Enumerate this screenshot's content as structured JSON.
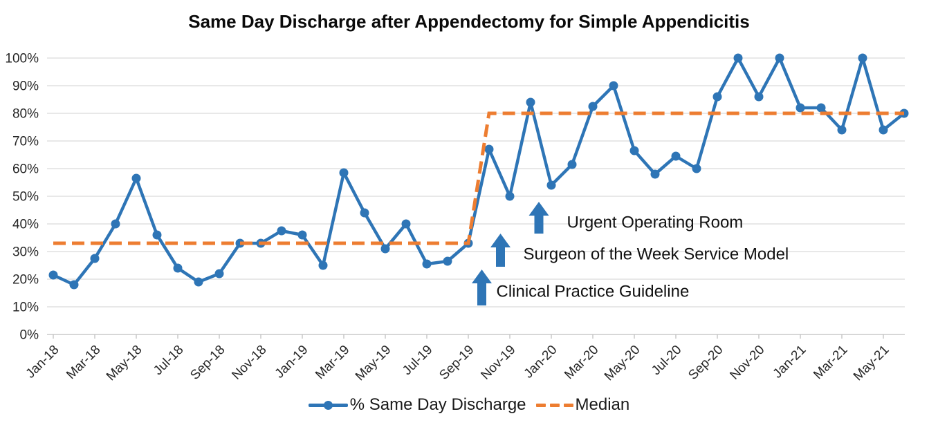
{
  "title": "Same Day Discharge after Appendectomy for Simple Appendicitis",
  "legend": {
    "series_label": "% Same Day Discharge",
    "median_label": "Median"
  },
  "colors": {
    "series": "#2E75B6",
    "median": "#ED7D31",
    "gridline": "#D9D9D9",
    "axis": "#BFBFBF",
    "tick_text": "#262626",
    "annotation_text": "#111111"
  },
  "y_axis": {
    "min": 0,
    "max": 100,
    "step": 10,
    "tick_labels": [
      "0%",
      "10%",
      "20%",
      "30%",
      "40%",
      "50%",
      "60%",
      "70%",
      "80%",
      "90%",
      "100%"
    ]
  },
  "x_axis": {
    "tick_labels": [
      "Jan-18",
      "Mar-18",
      "May-18",
      "Jul-18",
      "Sep-18",
      "Nov-18",
      "Jan-19",
      "Mar-19",
      "May-19",
      "Jul-19",
      "Sep-19",
      "Nov-19",
      "Jan-20",
      "Mar-20",
      "May-20",
      "Jul-20",
      "Sep-20",
      "Nov-20",
      "Jan-21",
      "Mar-21",
      "May-21"
    ]
  },
  "annotations": [
    {
      "label": "Clinical Practice Guideline",
      "arrow_month": 20.65,
      "arrow_top_pct": 23.5,
      "arrow_bottom_pct": 10.5,
      "label_month": 21.35,
      "label_pct": 15.5
    },
    {
      "label": "Surgeon of the Week Service Model",
      "arrow_month": 21.55,
      "arrow_top_pct": 36.5,
      "arrow_bottom_pct": 24.5,
      "label_month": 22.65,
      "label_pct": 29.0
    },
    {
      "label": "Urgent Operating Room",
      "arrow_month": 23.4,
      "arrow_top_pct": 48.0,
      "arrow_bottom_pct": 36.5,
      "label_month": 24.75,
      "label_pct": 40.5
    }
  ],
  "chart_data": {
    "type": "line",
    "title": "Same Day Discharge after Appendectomy for Simple Appendicitis",
    "xlabel": "",
    "ylabel": "",
    "ylim": [
      0,
      100
    ],
    "grid": true,
    "legend_position": "bottom",
    "x": [
      "Jan-18",
      "Feb-18",
      "Mar-18",
      "Apr-18",
      "May-18",
      "Jun-18",
      "Jul-18",
      "Aug-18",
      "Sep-18",
      "Oct-18",
      "Nov-18",
      "Dec-18",
      "Jan-19",
      "Feb-19",
      "Mar-19",
      "Apr-19",
      "May-19",
      "Jun-19",
      "Jul-19",
      "Aug-19",
      "Sep-19",
      "Oct-19",
      "Nov-19",
      "Dec-19",
      "Jan-20",
      "Feb-20",
      "Mar-20",
      "Apr-20",
      "May-20",
      "Jun-20",
      "Jul-20",
      "Aug-20",
      "Sep-20",
      "Oct-20",
      "Nov-20",
      "Dec-20",
      "Jan-21",
      "Feb-21",
      "Mar-21",
      "Apr-21",
      "May-21",
      "Jun-21"
    ],
    "series": [
      {
        "name": "% Same Day Discharge",
        "style": "solid-with-markers",
        "values": [
          21.5,
          18,
          27.5,
          40,
          56.5,
          36,
          24,
          19,
          22,
          33,
          33,
          37.5,
          36,
          25,
          58.5,
          44,
          31,
          40,
          25.5,
          26.5,
          33,
          67,
          50,
          84,
          54,
          61.5,
          82.5,
          90,
          66.5,
          58,
          64.5,
          60,
          86,
          100,
          86,
          100,
          82,
          82,
          74,
          100,
          74,
          80
        ]
      },
      {
        "name": "Median",
        "style": "dashed",
        "values": [
          33,
          33,
          33,
          33,
          33,
          33,
          33,
          33,
          33,
          33,
          33,
          33,
          33,
          33,
          33,
          33,
          33,
          33,
          33,
          33,
          33,
          80,
          80,
          80,
          80,
          80,
          80,
          80,
          80,
          80,
          80,
          80,
          80,
          80,
          80,
          80,
          80,
          80,
          80,
          80,
          80,
          80
        ]
      }
    ]
  }
}
